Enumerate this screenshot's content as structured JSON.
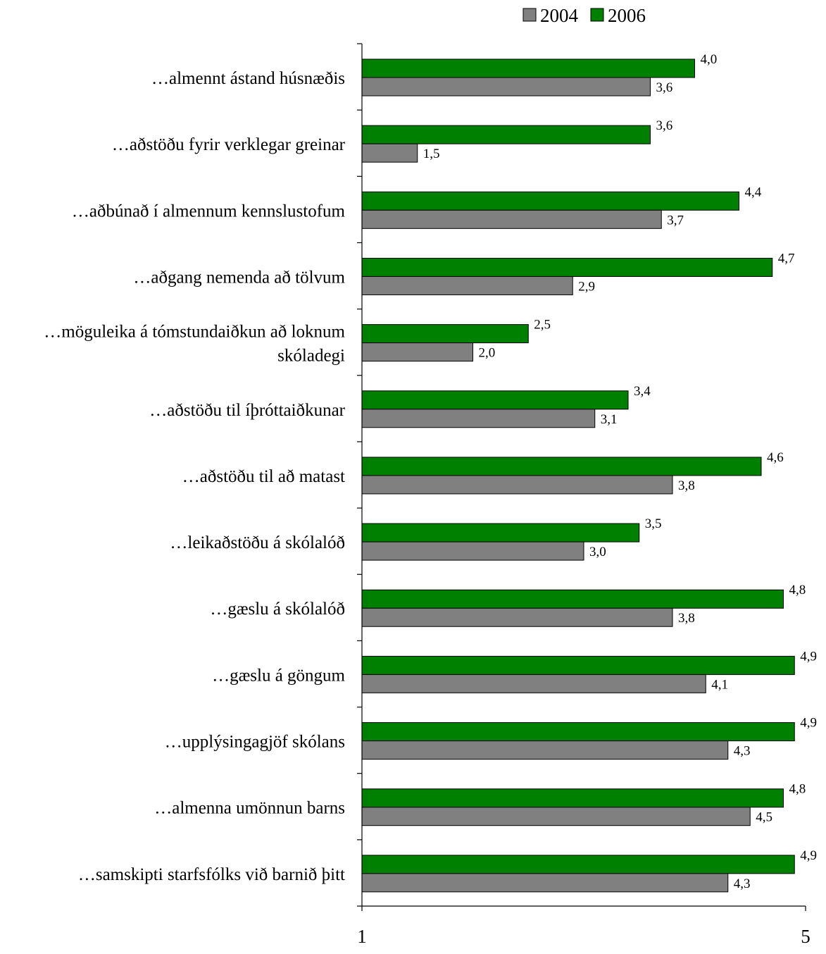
{
  "chart_data": {
    "type": "bar",
    "orientation": "horizontal",
    "categories": [
      "…almennt ástand húsnæðis",
      "…aðstöðu fyrir verklegar greinar",
      "…aðbúnað í almennum kennslustofum",
      "…aðgang nemenda að tölvum",
      "…möguleika á tómstundaiðkun að loknum skóladegi",
      "…aðstöðu til íþróttaiðkunar",
      "…aðstöðu til að matast",
      "…leikaðstöðu á skólalóð",
      "…gæslu á skólalóð",
      "…gæslu á göngum",
      "…upplýsingagjöf skólans",
      "…almenna umönnun barns",
      "…samskipti starfsfólks við barnið þitt"
    ],
    "category_lines": [
      [
        "…almennt ástand húsnæðis"
      ],
      [
        "…aðstöðu fyrir verklegar greinar"
      ],
      [
        "…aðbúnað í almennum kennslustofum"
      ],
      [
        "…aðgang nemenda að tölvum"
      ],
      [
        "…möguleika á tómstundaiðkun að loknum",
        "skóladegi"
      ],
      [
        "…aðstöðu til íþróttaiðkunar"
      ],
      [
        "…aðstöðu til að matast"
      ],
      [
        "…leikaðstöðu á skólalóð"
      ],
      [
        "…gæslu á skólalóð"
      ],
      [
        "…gæslu á göngum"
      ],
      [
        "…upplýsingagjöf skólans"
      ],
      [
        "…almenna umönnun barns"
      ],
      [
        "…samskipti starfsfólks við barnið þitt"
      ]
    ],
    "series": [
      {
        "name": "2004",
        "color": "#808080",
        "values": [
          3.6,
          1.5,
          3.7,
          2.9,
          2.0,
          3.1,
          3.8,
          3.0,
          3.8,
          4.1,
          4.3,
          4.5,
          4.3
        ],
        "labels": [
          "3,6",
          "1,5",
          "3,7",
          "2,9",
          "2,0",
          "3,1",
          "3,8",
          "3,0",
          "3,8",
          "4,1",
          "4,3",
          "4,5",
          "4,3"
        ]
      },
      {
        "name": "2006",
        "color": "#008000",
        "values": [
          4.0,
          3.6,
          4.4,
          4.7,
          2.5,
          3.4,
          4.6,
          3.5,
          4.8,
          4.9,
          4.9,
          4.8,
          4.9
        ],
        "labels": [
          "4,0",
          "3,6",
          "4,4",
          "4,7",
          "2,5",
          "3,4",
          "4,6",
          "3,5",
          "4,8",
          "4,9",
          "4,9",
          "4,8",
          "4,9"
        ]
      }
    ],
    "xlim": [
      1,
      5
    ],
    "xticks": [
      "1",
      "5"
    ],
    "legend_position": "top-right",
    "grid": false,
    "title": "",
    "xlabel": "",
    "ylabel": ""
  }
}
